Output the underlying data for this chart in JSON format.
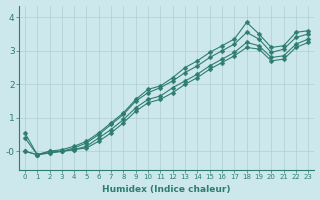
{
  "xlabel": "Humidex (Indice chaleur)",
  "ylabel": "",
  "bg_color": "#cde8ec",
  "grid_color": "#b0cdd0",
  "line_color": "#2e7d70",
  "xlim": [
    -0.5,
    23.5
  ],
  "ylim": [
    -0.55,
    4.35
  ],
  "xticks": [
    0,
    1,
    2,
    3,
    4,
    5,
    6,
    7,
    8,
    9,
    10,
    11,
    12,
    13,
    14,
    15,
    16,
    17,
    18,
    19,
    20,
    21,
    22,
    23
  ],
  "yticks": [
    0,
    1,
    2,
    3,
    4
  ],
  "ytick_labels": [
    "-0",
    "1",
    "2",
    "3",
    "4"
  ],
  "series": [
    [
      0.55,
      -0.1,
      0.0,
      0.05,
      0.15,
      0.3,
      0.55,
      0.85,
      1.15,
      1.55,
      1.85,
      1.95,
      2.2,
      2.5,
      2.7,
      2.95,
      3.15,
      3.35,
      3.85,
      3.5,
      3.1,
      3.15,
      3.55,
      3.6
    ],
    [
      0.4,
      -0.1,
      0.0,
      0.0,
      0.1,
      0.25,
      0.5,
      0.8,
      1.1,
      1.5,
      1.75,
      1.9,
      2.1,
      2.35,
      2.55,
      2.8,
      3.0,
      3.2,
      3.55,
      3.35,
      2.95,
      3.05,
      3.4,
      3.5
    ],
    [
      0.0,
      -0.1,
      -0.05,
      0.0,
      0.05,
      0.15,
      0.4,
      0.65,
      0.95,
      1.3,
      1.55,
      1.65,
      1.9,
      2.1,
      2.3,
      2.55,
      2.75,
      2.95,
      3.25,
      3.15,
      2.8,
      2.85,
      3.2,
      3.35
    ],
    [
      0.0,
      -0.1,
      -0.05,
      0.0,
      0.05,
      0.1,
      0.3,
      0.55,
      0.85,
      1.2,
      1.45,
      1.55,
      1.75,
      2.0,
      2.2,
      2.45,
      2.65,
      2.85,
      3.1,
      3.05,
      2.7,
      2.75,
      3.1,
      3.25
    ]
  ],
  "marker": "D",
  "markersize": 2.5,
  "linewidth": 0.8
}
